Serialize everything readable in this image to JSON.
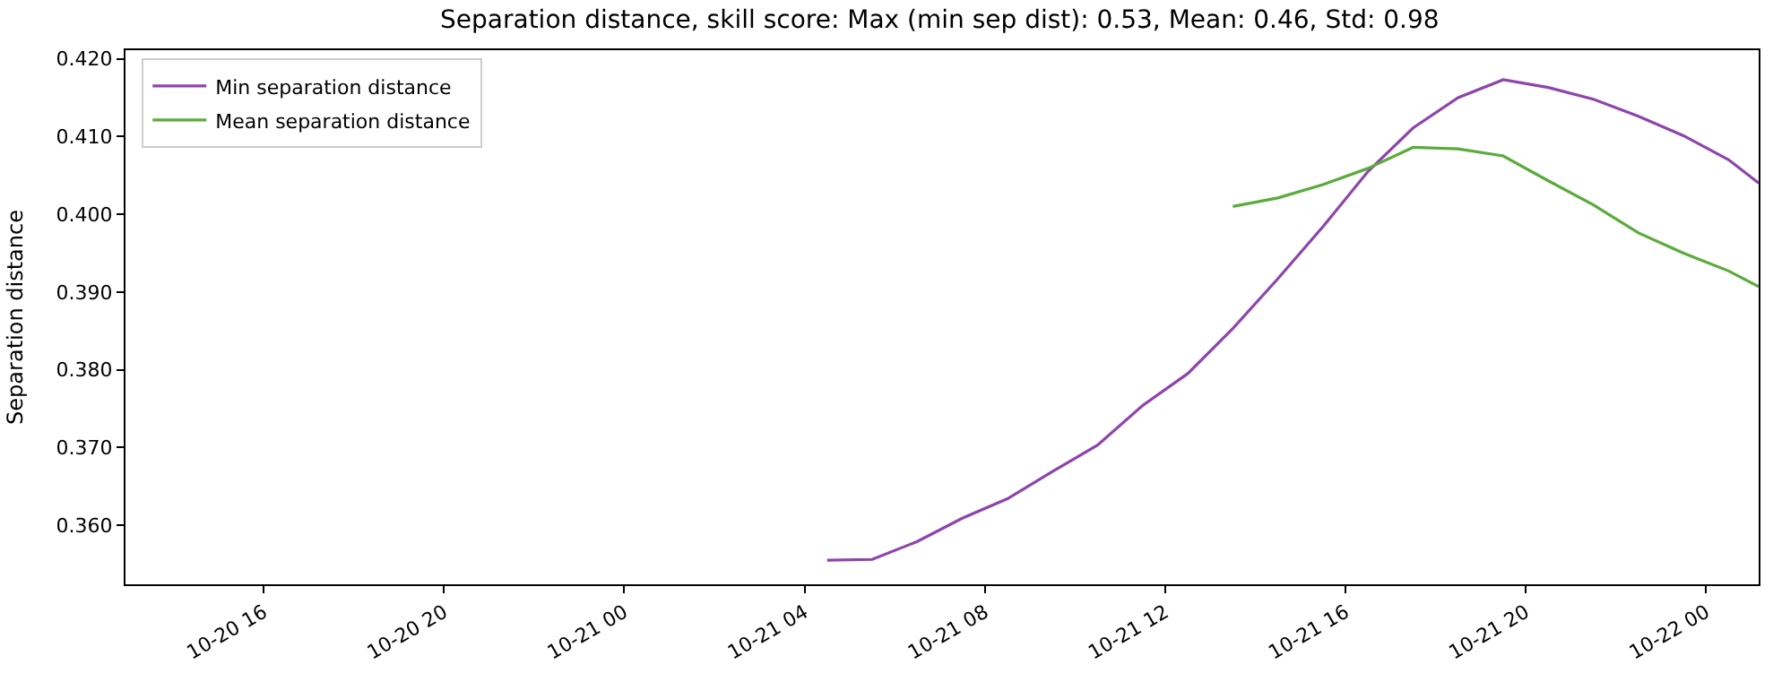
{
  "chart_data": {
    "type": "line",
    "title": "Separation distance, skill score: Max (min sep dist): 0.53, Mean: 0.46, Std: 0.98",
    "ylabel": "Separation distance",
    "xlim": [
      "--10-20T12:56",
      "--10-22T01:10"
    ],
    "xticks": [
      {
        "value": "--10-20T16:00",
        "label": "10-20 16"
      },
      {
        "value": "--10-20T20:00",
        "label": "10-20 20"
      },
      {
        "value": "--10-21T00:00",
        "label": "10-21 00"
      },
      {
        "value": "--10-21T04:00",
        "label": "10-21 04"
      },
      {
        "value": "--10-21T08:00",
        "label": "10-21 08"
      },
      {
        "value": "--10-21T12:00",
        "label": "10-21 12"
      },
      {
        "value": "--10-21T16:00",
        "label": "10-21 16"
      },
      {
        "value": "--10-21T20:00",
        "label": "10-21 20"
      },
      {
        "value": "--10-22T00:00",
        "label": "10-22 00"
      }
    ],
    "ylim": [
      0.3524,
      0.4211
    ],
    "yticks": [
      {
        "value": 0.36,
        "label": "0.360"
      },
      {
        "value": 0.37,
        "label": "0.370"
      },
      {
        "value": 0.38,
        "label": "0.380"
      },
      {
        "value": 0.39,
        "label": "0.390"
      },
      {
        "value": 0.4,
        "label": "0.400"
      },
      {
        "value": 0.41,
        "label": "0.410"
      },
      {
        "value": 0.42,
        "label": "0.420"
      }
    ],
    "legend": "top left",
    "marker": "none",
    "line_style": "solid",
    "series": [
      {
        "name": "Min separation distance",
        "color": "#8e44ad",
        "x": [
          "--10-21T04:30",
          "--10-21T05:30",
          "--10-21T06:30",
          "--10-21T07:30",
          "--10-21T08:30",
          "--10-21T09:30",
          "--10-21T10:30",
          "--10-21T11:30",
          "--10-21T12:30",
          "--10-21T13:30",
          "--10-21T14:30",
          "--10-21T15:30",
          "--10-21T16:30",
          "--10-21T17:30",
          "--10-21T18:30",
          "--10-21T19:30",
          "--10-21T20:30",
          "--10-21T21:30",
          "--10-21T22:30",
          "--10-21T23:30",
          "--10-22T00:30",
          "--10-22T01:10"
        ],
        "values": [
          0.3555,
          0.3556,
          0.3579,
          0.3609,
          0.3634,
          0.3669,
          0.3703,
          0.3754,
          0.3795,
          0.3853,
          0.3917,
          0.3984,
          0.4055,
          0.4111,
          0.415,
          0.4173,
          0.4163,
          0.4148,
          0.4126,
          0.4101,
          0.407,
          0.404
        ]
      },
      {
        "name": "Mean separation distance",
        "color": "#5aab3c",
        "x": [
          "--10-21T13:30",
          "--10-21T14:30",
          "--10-21T15:30",
          "--10-21T16:30",
          "--10-21T17:30",
          "--10-21T18:30",
          "--10-21T19:30",
          "--10-21T20:30",
          "--10-21T21:30",
          "--10-21T22:30",
          "--10-21T23:30",
          "--10-22T00:30",
          "--10-22T01:10"
        ],
        "values": [
          0.401,
          0.4021,
          0.4038,
          0.4059,
          0.4086,
          0.4084,
          0.4075,
          0.4043,
          0.4012,
          0.3976,
          0.395,
          0.3927,
          0.3907
        ]
      }
    ]
  }
}
